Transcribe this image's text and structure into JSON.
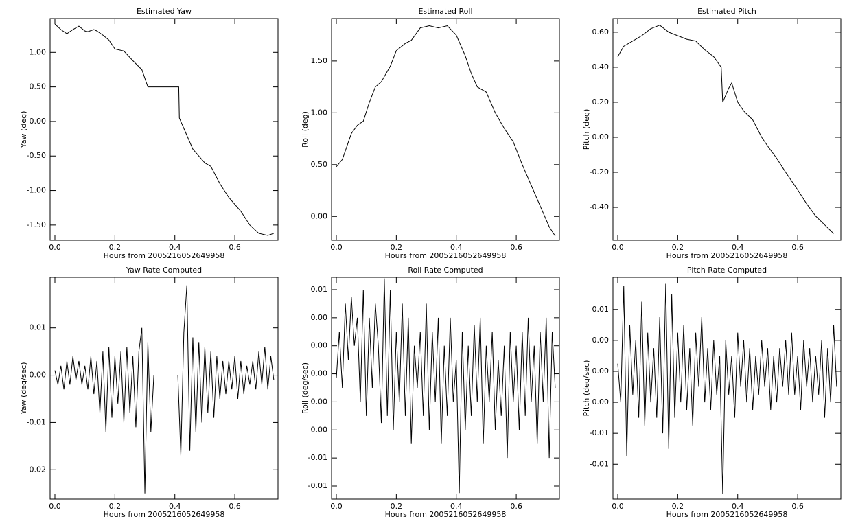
{
  "chart_data": [
    {
      "type": "line",
      "title": "Estimated Yaw",
      "x_label": "Hours from 2005216052649958",
      "y_label": "Yaw (deg)",
      "color": "#000000",
      "x": [
        0,
        0.02,
        0.04,
        0.06,
        0.08,
        0.1,
        0.11,
        0.13,
        0.14,
        0.16,
        0.18,
        0.2,
        0.23,
        0.26,
        0.29,
        0.31,
        0.413,
        0.415,
        0.43,
        0.46,
        0.5,
        0.52,
        0.55,
        0.58,
        0.62,
        0.65,
        0.68,
        0.71,
        0.73
      ],
      "values": [
        1.41,
        1.33,
        1.27,
        1.33,
        1.38,
        1.31,
        1.3,
        1.33,
        1.31,
        1.25,
        1.18,
        1.05,
        1.02,
        0.88,
        0.75,
        0.5,
        0.5,
        0.05,
        -0.1,
        -0.4,
        -0.6,
        -0.65,
        -0.9,
        -1.1,
        -1.3,
        -1.5,
        -1.62,
        -1.65,
        -1.62
      ],
      "xlim": [
        -0.016,
        0.744
      ],
      "ylim": [
        -1.72,
        1.49
      ],
      "xticks": [
        {
          "value": 0,
          "label": "0.0"
        },
        {
          "value": 0.2,
          "label": "0.2"
        },
        {
          "value": 0.4,
          "label": "0.4"
        },
        {
          "value": 0.6,
          "label": "0.6"
        }
      ],
      "yticks": [
        {
          "value": 1,
          "label": "1.00"
        },
        {
          "value": 0.5,
          "label": "0.50"
        },
        {
          "value": 0,
          "label": "0.00"
        },
        {
          "value": -0.5,
          "label": "-0.50"
        },
        {
          "value": -1,
          "label": "-1.00"
        },
        {
          "value": -1.5,
          "label": "-1.50"
        }
      ]
    },
    {
      "type": "line",
      "title": "Estimated Roll",
      "x_label": "Hours from 2005216052649958",
      "y_label": "Roll (deg)",
      "color": "#000000",
      "x": [
        0,
        0.02,
        0.05,
        0.07,
        0.09,
        0.11,
        0.13,
        0.15,
        0.18,
        0.2,
        0.23,
        0.25,
        0.28,
        0.31,
        0.34,
        0.37,
        0.4,
        0.43,
        0.45,
        0.47,
        0.5,
        0.53,
        0.56,
        0.59,
        0.62,
        0.65,
        0.68,
        0.71,
        0.73
      ],
      "values": [
        0.48,
        0.55,
        0.8,
        0.88,
        0.92,
        1.1,
        1.25,
        1.3,
        1.45,
        1.6,
        1.67,
        1.7,
        1.82,
        1.84,
        1.82,
        1.84,
        1.75,
        1.55,
        1.38,
        1.25,
        1.2,
        1.0,
        0.85,
        0.72,
        0.5,
        0.3,
        0.1,
        -0.1,
        -0.19
      ],
      "xlim": [
        -0.016,
        0.744
      ],
      "ylim": [
        -0.23,
        1.91
      ],
      "xticks": [
        {
          "value": 0,
          "label": "0.0"
        },
        {
          "value": 0.2,
          "label": "0.2"
        },
        {
          "value": 0.4,
          "label": "0.4"
        },
        {
          "value": 0.6,
          "label": "0.6"
        }
      ],
      "yticks": [
        {
          "value": 1.5,
          "label": "1.50"
        },
        {
          "value": 1,
          "label": "1.00"
        },
        {
          "value": 0.5,
          "label": "0.50"
        },
        {
          "value": 0,
          "label": "0.00"
        }
      ]
    },
    {
      "type": "line",
      "title": "Estimated Pitch",
      "x_label": "Hours from 2005216052649958",
      "y_label": "Pitch (deg)",
      "color": "#000000",
      "x": [
        0,
        0.02,
        0.05,
        0.08,
        0.11,
        0.14,
        0.17,
        0.2,
        0.23,
        0.26,
        0.29,
        0.32,
        0.345,
        0.35,
        0.37,
        0.38,
        0.4,
        0.42,
        0.45,
        0.48,
        0.5,
        0.53,
        0.56,
        0.6,
        0.63,
        0.66,
        0.69,
        0.72
      ],
      "values": [
        0.46,
        0.52,
        0.55,
        0.58,
        0.62,
        0.64,
        0.6,
        0.58,
        0.56,
        0.55,
        0.5,
        0.46,
        0.4,
        0.2,
        0.28,
        0.31,
        0.2,
        0.15,
        0.1,
        0.0,
        -0.05,
        -0.12,
        -0.2,
        -0.3,
        -0.38,
        -0.45,
        -0.5,
        -0.55
      ],
      "xlim": [
        -0.016,
        0.744
      ],
      "ylim": [
        -0.588,
        0.678
      ],
      "xticks": [
        {
          "value": 0,
          "label": "0.0"
        },
        {
          "value": 0.2,
          "label": "0.2"
        },
        {
          "value": 0.4,
          "label": "0.4"
        },
        {
          "value": 0.6,
          "label": "0.6"
        }
      ],
      "yticks": [
        {
          "value": 0.6,
          "label": "0.60"
        },
        {
          "value": 0.4,
          "label": "0.40"
        },
        {
          "value": 0.2,
          "label": "0.20"
        },
        {
          "value": 0,
          "label": "0.00"
        },
        {
          "value": -0.2,
          "label": "-0.20"
        },
        {
          "value": -0.4,
          "label": "-0.40"
        }
      ]
    },
    {
      "type": "line",
      "title": "Yaw Rate Computed",
      "x_label": "Hours from 2005216052649958",
      "y_label": "Yaw (deg/sec)",
      "color": "#000000",
      "x": [
        0,
        0.01,
        0.02,
        0.03,
        0.04,
        0.05,
        0.06,
        0.07,
        0.08,
        0.09,
        0.1,
        0.11,
        0.12,
        0.13,
        0.14,
        0.15,
        0.16,
        0.17,
        0.18,
        0.19,
        0.2,
        0.21,
        0.22,
        0.23,
        0.24,
        0.25,
        0.26,
        0.27,
        0.28,
        0.29,
        0.3,
        0.31,
        0.32,
        0.33,
        0.41,
        0.42,
        0.43,
        0.44,
        0.45,
        0.46,
        0.47,
        0.48,
        0.49,
        0.5,
        0.51,
        0.52,
        0.53,
        0.54,
        0.55,
        0.56,
        0.57,
        0.58,
        0.59,
        0.6,
        0.61,
        0.62,
        0.63,
        0.64,
        0.65,
        0.66,
        0.67,
        0.68,
        0.69,
        0.7,
        0.71,
        0.72,
        0.73
      ],
      "values": [
        0.001,
        -0.002,
        0.002,
        -0.003,
        0.003,
        -0.002,
        0.004,
        -0.001,
        0.003,
        -0.002,
        0.002,
        -0.003,
        0.004,
        -0.004,
        0.003,
        -0.008,
        0.005,
        -0.012,
        0.006,
        -0.009,
        0.004,
        -0.006,
        0.005,
        -0.01,
        0.006,
        -0.008,
        0.004,
        -0.011,
        0.005,
        0.01,
        -0.025,
        0.007,
        -0.012,
        0,
        0,
        -0.017,
        0.009,
        0.019,
        -0.016,
        0.008,
        -0.012,
        0.007,
        -0.01,
        0.006,
        -0.008,
        0.005,
        -0.009,
        0.004,
        -0.005,
        0.003,
        -0.004,
        0.003,
        -0.003,
        0.004,
        -0.005,
        0.003,
        -0.004,
        0.002,
        -0.002,
        0.003,
        -0.003,
        0.005,
        -0.002,
        0.006,
        -0.003,
        0.004,
        -0.001
      ],
      "xlim": [
        -0.016,
        0.744
      ],
      "ylim": [
        -0.0262,
        0.0207
      ],
      "xticks": [
        {
          "value": 0,
          "label": "0.0"
        },
        {
          "value": 0.2,
          "label": "0.2"
        },
        {
          "value": 0.4,
          "label": "0.4"
        },
        {
          "value": 0.6,
          "label": "0.6"
        }
      ],
      "yticks": [
        0.01,
        {
          "value": 0,
          "label": "0.00"
        },
        -0.01,
        -0.02
      ]
    },
    {
      "type": "line",
      "title": "Roll Rate Computed",
      "x_label": "Hours from 2005216052649958",
      "y_label": "Roll (deg/sec)",
      "color": "#000000",
      "x": [
        0,
        0.01,
        0.02,
        0.03,
        0.04,
        0.05,
        0.06,
        0.07,
        0.08,
        0.09,
        0.1,
        0.11,
        0.12,
        0.13,
        0.14,
        0.15,
        0.16,
        0.17,
        0.18,
        0.19,
        0.2,
        0.21,
        0.22,
        0.23,
        0.24,
        0.25,
        0.26,
        0.27,
        0.28,
        0.29,
        0.3,
        0.31,
        0.32,
        0.33,
        0.34,
        0.35,
        0.36,
        0.37,
        0.38,
        0.39,
        0.4,
        0.41,
        0.42,
        0.43,
        0.44,
        0.45,
        0.46,
        0.47,
        0.48,
        0.49,
        0.5,
        0.51,
        0.52,
        0.53,
        0.54,
        0.55,
        0.56,
        0.57,
        0.58,
        0.59,
        0.6,
        0.61,
        0.62,
        0.63,
        0.64,
        0.65,
        0.66,
        0.67,
        0.68,
        0.69,
        0.7,
        0.71,
        0.72,
        0.73
      ],
      "values": [
        -0.0003,
        0.003,
        -0.001,
        0.005,
        0.001,
        0.0055,
        0.002,
        0.004,
        -0.002,
        0.006,
        -0.003,
        0.004,
        -0.001,
        0.005,
        0.002,
        -0.0035,
        0.0068,
        -0.003,
        0.006,
        -0.004,
        0.003,
        -0.002,
        0.005,
        -0.003,
        0.004,
        -0.005,
        0.002,
        -0.001,
        0.003,
        -0.003,
        0.005,
        -0.004,
        0.003,
        -0.002,
        0.004,
        -0.005,
        0.002,
        -0.003,
        0.004,
        -0.002,
        0.001,
        -0.0085,
        0.003,
        -0.004,
        0.002,
        -0.003,
        0.0035,
        -0.002,
        0.004,
        -0.005,
        0.002,
        -0.002,
        0.003,
        -0.004,
        0.001,
        -0.003,
        0.002,
        -0.006,
        0.003,
        -0.002,
        0.002,
        -0.004,
        0.003,
        -0.003,
        0.004,
        -0.002,
        0.002,
        -0.005,
        0.003,
        -0.002,
        0.004,
        -0.006,
        0.003,
        -0.001
      ],
      "xlim": [
        -0.016,
        0.744
      ],
      "ylim": [
        -0.00893,
        0.00688
      ],
      "xticks": [
        {
          "value": 0,
          "label": "0.0"
        },
        {
          "value": 0.2,
          "label": "0.2"
        },
        {
          "value": 0.4,
          "label": "0.4"
        },
        {
          "value": 0.6,
          "label": "0.6"
        }
      ],
      "yticks": [
        {
          "value": 0.006,
          "label": "0.01"
        },
        {
          "value": 0.004,
          "label": "0.00"
        },
        {
          "value": 0.002,
          "label": "0.00"
        },
        {
          "value": 0,
          "label": "0.00"
        },
        {
          "value": -0.002,
          "label": "0.00"
        },
        {
          "value": -0.004,
          "label": "0.00"
        },
        {
          "value": -0.006,
          "label": "-0.01"
        },
        {
          "value": -0.008,
          "label": "-0.01"
        }
      ]
    },
    {
      "type": "line",
      "title": "Pitch Rate Computed",
      "x_label": "Hours from 2005216052649958",
      "y_label": "Pitch (deg/sec)",
      "color": "#000000",
      "x": [
        0,
        0.01,
        0.02,
        0.03,
        0.04,
        0.05,
        0.06,
        0.07,
        0.08,
        0.09,
        0.1,
        0.11,
        0.12,
        0.13,
        0.14,
        0.15,
        0.16,
        0.17,
        0.18,
        0.19,
        0.2,
        0.21,
        0.22,
        0.23,
        0.24,
        0.25,
        0.26,
        0.27,
        0.28,
        0.29,
        0.3,
        0.31,
        0.32,
        0.33,
        0.34,
        0.35,
        0.36,
        0.37,
        0.38,
        0.39,
        0.4,
        0.41,
        0.42,
        0.43,
        0.44,
        0.45,
        0.46,
        0.47,
        0.48,
        0.49,
        0.5,
        0.51,
        0.52,
        0.53,
        0.54,
        0.55,
        0.56,
        0.57,
        0.58,
        0.59,
        0.6,
        0.61,
        0.62,
        0.63,
        0.64,
        0.65,
        0.66,
        0.67,
        0.68,
        0.69,
        0.7,
        0.71,
        0.72,
        0.73
      ],
      "values": [
        0.001,
        -0.004,
        0.011,
        -0.011,
        0.006,
        -0.003,
        0.004,
        -0.006,
        0.009,
        -0.007,
        0.005,
        -0.004,
        0.003,
        -0.006,
        0.007,
        -0.008,
        0.0114,
        -0.01,
        0.01,
        -0.006,
        0.005,
        -0.004,
        0.006,
        -0.005,
        0.003,
        -0.007,
        0.005,
        -0.002,
        0.007,
        -0.004,
        0.003,
        -0.005,
        0.004,
        -0.003,
        0.002,
        -0.0158,
        0.004,
        -0.003,
        0.002,
        -0.006,
        0.005,
        -0.002,
        0.004,
        -0.004,
        0.003,
        -0.005,
        0.002,
        -0.003,
        0.004,
        -0.002,
        0.003,
        -0.005,
        0.002,
        -0.004,
        0.003,
        -0.002,
        0.004,
        -0.003,
        0.005,
        -0.003,
        0.002,
        -0.005,
        0.004,
        -0.002,
        0.003,
        -0.004,
        0.002,
        -0.003,
        0.004,
        -0.006,
        0.003,
        -0.004,
        0.006,
        -0.002
      ],
      "xlim": [
        -0.016,
        0.744
      ],
      "ylim": [
        -0.0165,
        0.01215
      ],
      "xticks": [
        {
          "value": 0,
          "label": "0.0"
        },
        {
          "value": 0.2,
          "label": "0.2"
        },
        {
          "value": 0.4,
          "label": "0.4"
        },
        {
          "value": 0.6,
          "label": "0.6"
        }
      ],
      "yticks": [
        {
          "value": 0.008,
          "label": "0.01"
        },
        {
          "value": 0.004,
          "label": "0.00"
        },
        {
          "value": 0,
          "label": "0.00"
        },
        {
          "value": -0.004,
          "label": "0.00"
        },
        {
          "value": -0.008,
          "label": "-0.01"
        },
        {
          "value": -0.012,
          "label": "-0.01"
        }
      ]
    }
  ]
}
